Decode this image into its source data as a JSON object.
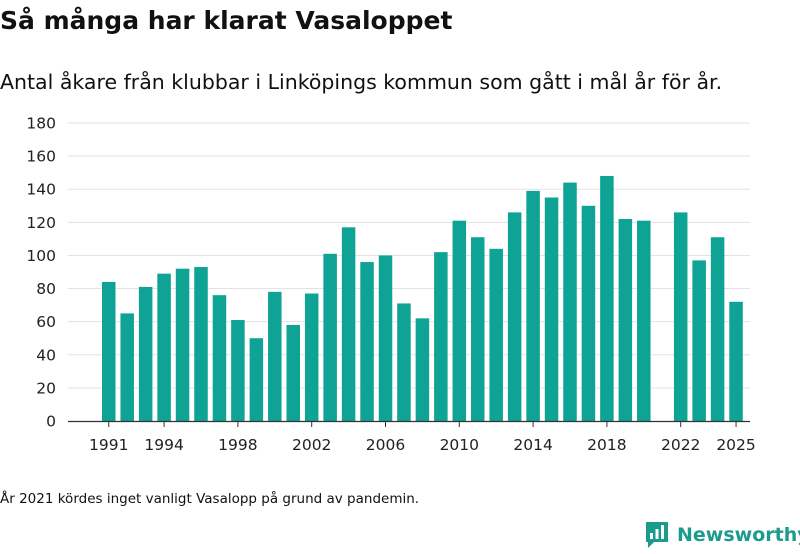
{
  "header": {
    "title": "Så många har klarat Vasaloppet",
    "subtitle": "Antal åkare från klubbar i Linköpings kommun som gått i mål år för år."
  },
  "footer": {
    "note": "År 2021 kördes inget vanligt Vasalopp på grund av pandemin.",
    "brand": "Newsworthy"
  },
  "colors": {
    "bar": "#0fa395",
    "brand": "#1a9b8d",
    "grid": "#e3e3e3",
    "axis": "#333333"
  },
  "chart_data": {
    "type": "bar",
    "title": "Så många har klarat Vasaloppet",
    "xlabel": "",
    "ylabel": "",
    "ylim": [
      0,
      180
    ],
    "yticks": [
      0,
      20,
      40,
      60,
      80,
      100,
      120,
      140,
      160,
      180
    ],
    "xticks": [
      1991,
      1994,
      1998,
      2002,
      2006,
      2010,
      2014,
      2018,
      2022,
      2025
    ],
    "grid": true,
    "categories": [
      1991,
      1992,
      1993,
      1994,
      1995,
      1996,
      1997,
      1998,
      1999,
      2000,
      2001,
      2002,
      2003,
      2004,
      2005,
      2006,
      2007,
      2008,
      2009,
      2010,
      2011,
      2012,
      2013,
      2014,
      2015,
      2016,
      2017,
      2018,
      2019,
      2020,
      2021,
      2022,
      2023,
      2024,
      2025
    ],
    "values": [
      84,
      65,
      81,
      89,
      92,
      93,
      76,
      61,
      50,
      78,
      58,
      77,
      101,
      117,
      96,
      100,
      71,
      62,
      102,
      121,
      111,
      104,
      126,
      139,
      135,
      144,
      130,
      148,
      122,
      121,
      null,
      126,
      97,
      111,
      72
    ]
  }
}
